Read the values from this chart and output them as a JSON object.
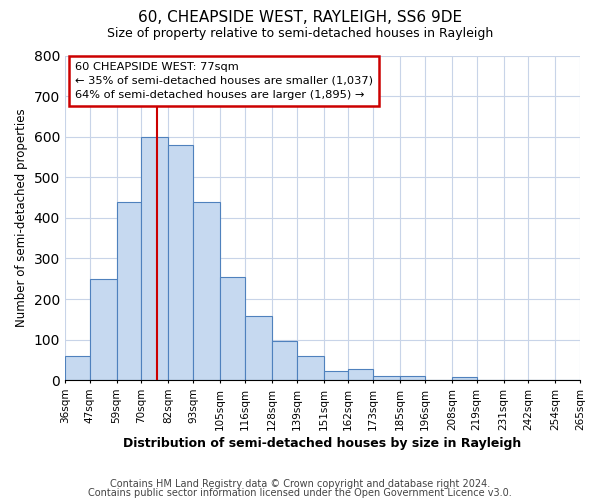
{
  "title": "60, CHEAPSIDE WEST, RAYLEIGH, SS6 9DE",
  "subtitle": "Size of property relative to semi-detached houses in Rayleigh",
  "xlabel": "Distribution of semi-detached houses by size in Rayleigh",
  "ylabel": "Number of semi-detached properties",
  "bin_edges": [
    36,
    47,
    59,
    70,
    82,
    93,
    105,
    116,
    128,
    139,
    151,
    162,
    173,
    185,
    196,
    208,
    219,
    231,
    242,
    254,
    265
  ],
  "bar_heights": [
    60,
    250,
    440,
    600,
    580,
    438,
    255,
    158,
    97,
    60,
    22,
    27,
    10,
    10,
    0,
    8,
    0,
    0,
    0,
    0
  ],
  "bar_color": "#c6d9f0",
  "bar_edge_color": "#4f81bd",
  "property_size": 77,
  "property_line_color": "#cc0000",
  "annotation_line1": "60 CHEAPSIDE WEST: 77sqm",
  "annotation_line2": "← 35% of semi-detached houses are smaller (1,037)",
  "annotation_line3": "64% of semi-detached houses are larger (1,895) →",
  "annotation_box_color": "#ffffff",
  "annotation_box_edge_color": "#cc0000",
  "ylim": [
    0,
    800
  ],
  "yticks": [
    0,
    100,
    200,
    300,
    400,
    500,
    600,
    700,
    800
  ],
  "tick_labels": [
    "36sqm",
    "47sqm",
    "59sqm",
    "70sqm",
    "82sqm",
    "93sqm",
    "105sqm",
    "116sqm",
    "128sqm",
    "139sqm",
    "151sqm",
    "162sqm",
    "173sqm",
    "185sqm",
    "196sqm",
    "208sqm",
    "219sqm",
    "231sqm",
    "242sqm",
    "254sqm",
    "265sqm"
  ],
  "footer_line1": "Contains HM Land Registry data © Crown copyright and database right 2024.",
  "footer_line2": "Contains public sector information licensed under the Open Government Licence v3.0.",
  "bg_color": "#ffffff",
  "grid_color": "#c8d4e8"
}
